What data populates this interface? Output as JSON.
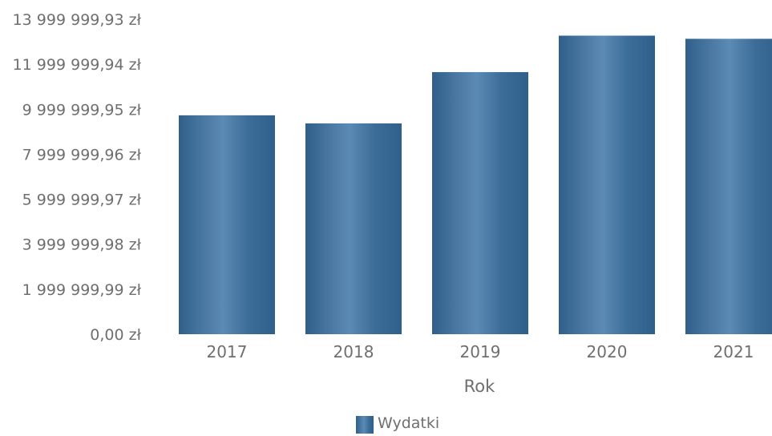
{
  "chart_data": {
    "type": "bar",
    "categories": [
      "2017",
      "2018",
      "2019",
      "2020",
      "2021"
    ],
    "series": [
      {
        "name": "Wydatki",
        "values": [
          9730000,
          9370000,
          11650000,
          13270000,
          13130000
        ]
      }
    ],
    "ylim": [
      0,
      13999999.93
    ],
    "yticks": [
      0,
      1999999.99,
      3999999.98,
      5999999.97,
      7999999.96,
      9999999.95,
      11999999.94,
      13999999.93
    ],
    "ytick_labels": [
      "0,00 zł",
      "1 999 999,99 zł",
      "3 999 999,98 zł",
      "5 999 999,97 zł",
      "7 999 999,96 zł",
      "9 999 999,95 zł",
      "11 999 999,94 zł",
      "13 999 999,93 zł"
    ],
    "xlabel": "Rok",
    "ylabel": "",
    "legend": {
      "position": "bottom",
      "items": [
        "Wydatki"
      ]
    },
    "grid": false,
    "colors": {
      "bar": "#2f5f8a",
      "bar_highlight": "#5b8ab4",
      "text": "#6f6f6f"
    }
  }
}
